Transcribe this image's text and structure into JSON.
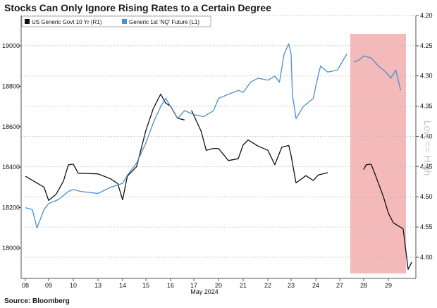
{
  "title": "Stocks Can Only Ignore Rising Rates to a Certain Degree",
  "source": "Source: Bloomberg",
  "chart_data": {
    "type": "line",
    "x_tick_labels": [
      "08",
      "09",
      "10",
      "13",
      "14",
      "15",
      "16",
      "17",
      "20",
      "21",
      "22",
      "23",
      "24",
      "27",
      "28",
      "29"
    ],
    "x_axis_month_label": "May 2024",
    "left_axis": {
      "ylim": [
        17850,
        19150
      ],
      "ticks": [
        18000,
        18200,
        18400,
        18600,
        18800,
        19000
      ]
    },
    "right_axis": {
      "ylim": [
        4.635,
        4.2
      ],
      "inverted": true,
      "ticks": [
        "4.20",
        "4.25",
        "4.30",
        "4.35",
        "4.40",
        "4.45",
        "4.50",
        "4.55",
        "4.60"
      ],
      "label": "Low <= High"
    },
    "grid": "horizontal dotted",
    "legend_position": "top-left",
    "highlight": {
      "from_tick": "27",
      "to_tick": "29",
      "color": "#f4b9b9"
    },
    "series": [
      {
        "name": "US Generic Govt 10 Yr (R1)",
        "axis": "right",
        "color": "#111111",
        "segments": [
          [
            [
              "08",
              4.466
            ],
            [
              "08.4",
              4.475
            ],
            [
              "08.8",
              4.484
            ],
            [
              "09",
              4.506
            ],
            [
              "09.3",
              4.496
            ],
            [
              "09.6",
              4.474
            ],
            [
              "09.8",
              4.447
            ],
            [
              "10",
              4.446
            ],
            [
              "10.2",
              4.461
            ],
            [
              "13",
              4.462
            ],
            [
              "13.5",
              4.47
            ],
            [
              "13.8",
              4.478
            ],
            [
              "14",
              4.505
            ],
            [
              "14.2",
              4.466
            ],
            [
              "14.6",
              4.45
            ],
            [
              "15",
              4.39
            ],
            [
              "15.3",
              4.354
            ],
            [
              "15.6",
              4.33
            ],
            [
              "15.8",
              4.345
            ],
            [
              "16",
              4.35
            ],
            [
              "16.3",
              4.37
            ],
            [
              "16.6",
              4.373
            ]
          ],
          [
            [
              "16.9",
              4.357
            ],
            [
              "17.3",
              4.392
            ],
            [
              "17.5",
              4.423
            ],
            [
              "17.8",
              4.42
            ],
            [
              "20",
              4.42
            ],
            [
              "20.4",
              4.44
            ],
            [
              "20.8",
              4.437
            ],
            [
              "21",
              4.414
            ],
            [
              "21.2",
              4.406
            ],
            [
              "21.6",
              4.416
            ],
            [
              "22",
              4.423
            ],
            [
              "22.3",
              4.447
            ],
            [
              "22.6",
              4.418
            ],
            [
              "22.9",
              4.415
            ],
            [
              "23",
              4.432
            ],
            [
              "23.2",
              4.477
            ],
            [
              "23.6",
              4.465
            ],
            [
              "23.9",
              4.473
            ],
            [
              "24.1",
              4.464
            ],
            [
              "24.5",
              4.46
            ]
          ],
          [
            [
              "28",
              4.455
            ],
            [
              "28.1",
              4.447
            ],
            [
              "28.3",
              4.446
            ],
            [
              "28.5",
              4.467
            ],
            [
              "28.8",
              4.5
            ],
            [
              "29",
              4.527
            ],
            [
              "29.2",
              4.543
            ],
            [
              "29.6",
              4.553
            ],
            [
              "29.8",
              4.62
            ],
            [
              "29.95",
              4.608
            ]
          ]
        ]
      },
      {
        "name": "Generic 1st 'NQ' Future (L1)",
        "axis": "left",
        "color": "#4a8fcf",
        "segments": [
          [
            [
              "08",
              18200
            ],
            [
              "08.3",
              18190
            ],
            [
              "08.5",
              18100
            ],
            [
              "08.8",
              18190
            ],
            [
              "09",
              18220
            ],
            [
              "09.4",
              18240
            ],
            [
              "09.8",
              18280
            ],
            [
              "10",
              18290
            ],
            [
              "10.3",
              18280
            ],
            [
              "13",
              18270
            ],
            [
              "13.5",
              18300
            ],
            [
              "14",
              18320
            ],
            [
              "14.2",
              18360
            ],
            [
              "14.6",
              18420
            ],
            [
              "15",
              18520
            ],
            [
              "15.3",
              18620
            ],
            [
              "15.6",
              18700
            ],
            [
              "15.8",
              18740
            ],
            [
              "16",
              18700
            ],
            [
              "16.3",
              18640
            ],
            [
              "16.6",
              18680
            ],
            [
              "17",
              18660
            ],
            [
              "17.4",
              18650
            ],
            [
              "17.8",
              18680
            ],
            [
              "20",
              18740
            ],
            [
              "20.4",
              18760
            ],
            [
              "20.8",
              18780
            ],
            [
              "21",
              18770
            ],
            [
              "21.3",
              18820
            ],
            [
              "21.6",
              18840
            ],
            [
              "22",
              18830
            ],
            [
              "22.3",
              18850
            ],
            [
              "22.5",
              18820
            ],
            [
              "22.7",
              18960
            ],
            [
              "22.9",
              19010
            ],
            [
              "23",
              18960
            ],
            [
              "23.05",
              18760
            ],
            [
              "23.2",
              18640
            ],
            [
              "23.5",
              18700
            ],
            [
              "23.9",
              18740
            ],
            [
              "24",
              18800
            ],
            [
              "24.2",
              18900
            ],
            [
              "24.5",
              18870
            ],
            [
              "24.9",
              18880
            ],
            [
              "27.3",
              18960
            ]
          ],
          [
            [
              "27.6",
              18920
            ],
            [
              "27.8",
              18930
            ],
            [
              "28",
              18950
            ],
            [
              "28.3",
              18940
            ],
            [
              "28.6",
              18900
            ],
            [
              "28.9",
              18870
            ],
            [
              "29.1",
              18840
            ],
            [
              "29.3",
              18880
            ],
            [
              "29.5",
              18780
            ]
          ]
        ]
      }
    ]
  }
}
